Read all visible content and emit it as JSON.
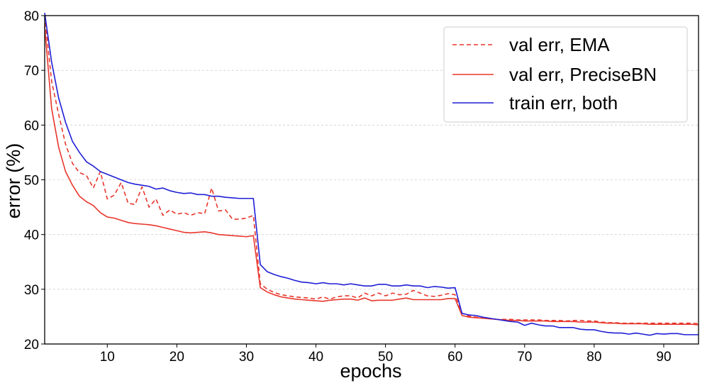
{
  "chart_data": {
    "type": "line",
    "xlabel": "epochs",
    "ylabel": "error (%)",
    "xlim": [
      1,
      95
    ],
    "ylim": [
      20,
      80
    ],
    "xticks": [
      10,
      20,
      30,
      40,
      50,
      60,
      70,
      80,
      90
    ],
    "yticks": [
      20,
      30,
      40,
      50,
      60,
      70,
      80
    ],
    "grid": "horizontal dashed",
    "legend_position": "top-right",
    "x": [
      1,
      2,
      3,
      4,
      5,
      6,
      7,
      8,
      9,
      10,
      11,
      12,
      13,
      14,
      15,
      16,
      17,
      18,
      19,
      20,
      21,
      22,
      23,
      24,
      25,
      26,
      27,
      28,
      29,
      30,
      31,
      32,
      33,
      34,
      35,
      36,
      37,
      38,
      39,
      40,
      41,
      42,
      43,
      44,
      45,
      46,
      47,
      48,
      49,
      50,
      51,
      52,
      53,
      54,
      55,
      56,
      57,
      58,
      59,
      60,
      61,
      62,
      63,
      64,
      65,
      66,
      67,
      68,
      69,
      70,
      71,
      72,
      73,
      74,
      75,
      76,
      77,
      78,
      79,
      80,
      81,
      82,
      83,
      84,
      85,
      86,
      87,
      88,
      89,
      90,
      91,
      92,
      93,
      94,
      95
    ],
    "series": [
      {
        "name": "val err, EMA",
        "color": "#e8362b",
        "style": "dashed",
        "values": [
          80.0,
          68.0,
          62.0,
          56.5,
          53.0,
          51.3,
          50.8,
          48.5,
          51.5,
          46.5,
          47.2,
          49.5,
          45.7,
          45.5,
          48.7,
          45.0,
          46.5,
          43.5,
          44.5,
          43.7,
          44.0,
          43.5,
          44.0,
          43.8,
          48.5,
          44.3,
          44.5,
          42.8,
          42.8,
          43.0,
          43.5,
          31.0,
          30.0,
          29.4,
          29.0,
          28.8,
          28.6,
          28.5,
          28.4,
          28.2,
          28.6,
          28.2,
          28.6,
          28.8,
          28.8,
          28.4,
          29.3,
          28.8,
          29.3,
          28.8,
          29.3,
          29.0,
          29.1,
          29.8,
          29.3,
          28.8,
          28.7,
          28.9,
          29.2,
          29.0,
          25.6,
          25.1,
          24.9,
          24.8,
          24.6,
          24.5,
          24.5,
          24.5,
          24.4,
          24.4,
          24.4,
          24.4,
          24.3,
          24.3,
          24.3,
          24.2,
          24.3,
          24.3,
          24.2,
          24.2,
          24.0,
          23.9,
          23.9,
          23.8,
          23.8,
          23.8,
          23.8,
          23.8,
          23.8,
          23.8,
          23.8,
          23.8,
          23.8,
          23.8,
          23.7
        ]
      },
      {
        "name": "val err, PreciseBN",
        "color": "#e8362b",
        "style": "solid",
        "values": [
          78.0,
          63.0,
          56.0,
          51.5,
          49.0,
          47.0,
          46.0,
          45.3,
          44.0,
          43.2,
          43.0,
          42.6,
          42.2,
          42.0,
          41.9,
          41.8,
          41.6,
          41.3,
          41.0,
          40.7,
          40.4,
          40.3,
          40.4,
          40.5,
          40.3,
          40.0,
          39.9,
          39.8,
          39.7,
          39.6,
          39.8,
          30.3,
          29.5,
          29.0,
          28.6,
          28.4,
          28.2,
          28.1,
          28.0,
          27.9,
          27.8,
          28.0,
          28.1,
          28.2,
          28.2,
          28.0,
          28.4,
          27.9,
          28.0,
          28.0,
          28.0,
          28.2,
          28.4,
          28.1,
          28.1,
          28.1,
          28.1,
          28.1,
          28.3,
          28.3,
          25.2,
          24.9,
          24.8,
          24.7,
          24.6,
          24.5,
          24.4,
          24.3,
          24.3,
          24.2,
          24.2,
          24.2,
          24.2,
          24.1,
          24.1,
          24.1,
          24.1,
          24.0,
          24.0,
          24.0,
          23.9,
          23.8,
          23.8,
          23.7,
          23.7,
          23.7,
          23.7,
          23.6,
          23.6,
          23.6,
          23.6,
          23.6,
          23.6,
          23.6,
          23.5
        ]
      },
      {
        "name": "train err, both",
        "color": "#1f1fd6",
        "style": "solid",
        "values": [
          80.5,
          71.5,
          65.0,
          60.5,
          57.0,
          55.0,
          53.3,
          52.5,
          51.5,
          51.0,
          50.5,
          50.0,
          49.5,
          49.2,
          49.0,
          48.8,
          48.3,
          48.5,
          48.0,
          47.7,
          47.5,
          47.6,
          47.3,
          47.3,
          47.0,
          47.0,
          46.8,
          46.7,
          46.6,
          46.6,
          46.6,
          34.5,
          33.2,
          32.7,
          32.3,
          32.0,
          31.6,
          31.3,
          31.2,
          31.0,
          31.2,
          31.0,
          31.0,
          30.8,
          31.0,
          30.8,
          30.6,
          30.6,
          30.9,
          30.9,
          30.6,
          30.6,
          30.8,
          30.6,
          30.6,
          30.3,
          30.5,
          30.4,
          30.2,
          30.3,
          25.6,
          25.3,
          25.2,
          24.9,
          24.7,
          24.5,
          24.3,
          24.1,
          24.0,
          23.4,
          23.8,
          23.5,
          23.3,
          23.3,
          23.0,
          23.0,
          23.0,
          22.7,
          22.6,
          22.6,
          22.3,
          22.1,
          22.0,
          22.0,
          21.8,
          22.0,
          21.8,
          21.6,
          21.9,
          21.8,
          21.9,
          21.9,
          21.7,
          21.7,
          21.7
        ]
      }
    ]
  }
}
